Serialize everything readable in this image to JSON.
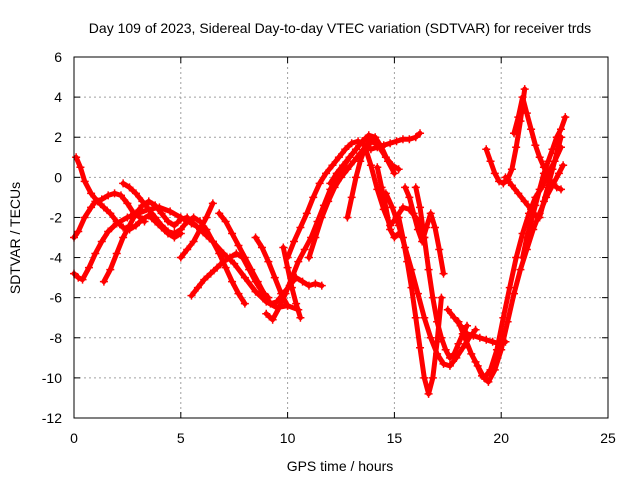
{
  "chart_data": {
    "type": "scatter",
    "title": "Day 109 of 2023, Sidereal Day-to-day VTEC variation (SDTVAR) for receiver trds",
    "xlabel": "GPS time / hours",
    "ylabel": "SDTVAR / TECUs",
    "xlim": [
      0,
      25
    ],
    "ylim": [
      -12,
      6
    ],
    "xticks": [
      "0",
      "5",
      "10",
      "15",
      "20",
      "25"
    ],
    "yticks": [
      "6",
      "4",
      "2",
      "0",
      "-2",
      "-4",
      "-6",
      "-8",
      "-10",
      "-12"
    ],
    "grid": true,
    "marker": "plus",
    "color": "#ff0000",
    "series": [
      {
        "x": [
          0.0,
          0.2,
          0.5,
          0.8,
          1.0,
          1.3,
          1.6,
          1.9,
          2.2,
          2.5,
          2.8,
          3.1,
          3.3
        ],
        "y": [
          -3.0,
          -2.7,
          -2.0,
          -1.5,
          -1.2,
          -1.1,
          -0.9,
          -0.8,
          -0.9,
          -1.3,
          -1.8,
          -2.0,
          -2.2
        ]
      },
      {
        "x": [
          0.0,
          0.2,
          0.4,
          0.7,
          1.0,
          1.3,
          1.6,
          2.0,
          2.5,
          3.0,
          3.5,
          4.0,
          4.5,
          5.0,
          5.5,
          6.0,
          6.5,
          7.0,
          7.5,
          8.0,
          8.5,
          9.0,
          9.5,
          10.0,
          10.5
        ],
        "y": [
          -4.8,
          -5.0,
          -5.1,
          -4.5,
          -3.8,
          -3.2,
          -2.7,
          -2.3,
          -2.0,
          -1.8,
          -1.6,
          -1.5,
          -1.7,
          -2.0,
          -2.3,
          -2.6,
          -3.2,
          -3.8,
          -4.3,
          -5.0,
          -5.7,
          -6.2,
          -6.5,
          -6.4,
          -6.6
        ]
      },
      {
        "x": [
          0.1,
          0.3,
          0.5,
          0.8,
          1.1,
          1.4,
          1.7,
          2.0,
          2.3,
          2.6,
          2.9,
          3.2,
          3.5,
          3.8,
          4.1,
          4.4,
          4.7,
          5.0
        ],
        "y": [
          1.0,
          0.5,
          -0.2,
          -0.8,
          -1.2,
          -1.5,
          -1.8,
          -2.2,
          -2.5,
          -2.6,
          -2.4,
          -2.1,
          -1.9,
          -2.2,
          -2.5,
          -2.8,
          -3.0,
          -2.8
        ]
      },
      {
        "x": [
          1.4,
          1.7,
          2.0,
          2.3,
          2.6,
          2.9,
          3.2,
          3.5,
          3.8,
          4.1,
          4.4,
          4.7,
          5.0,
          5.3,
          5.6,
          5.9,
          6.2,
          6.5
        ],
        "y": [
          -5.2,
          -4.6,
          -3.8,
          -3.0,
          -2.4,
          -1.8,
          -1.4,
          -1.2,
          -1.4,
          -1.8,
          -2.2,
          -2.4,
          -2.1,
          -2.0,
          -2.3,
          -2.6,
          -2.9,
          -3.2
        ]
      },
      {
        "x": [
          2.3,
          2.6,
          2.9,
          3.2,
          3.5,
          3.8,
          4.1,
          4.4,
          4.7,
          5.0,
          5.3,
          5.6,
          5.9,
          6.2,
          6.5,
          6.8,
          7.1,
          7.4,
          7.7,
          8.0
        ],
        "y": [
          -0.3,
          -0.5,
          -0.8,
          -1.2,
          -1.6,
          -2.0,
          -2.4,
          -2.7,
          -2.8,
          -2.6,
          -2.2,
          -2.0,
          -2.2,
          -2.6,
          -3.2,
          -3.8,
          -4.5,
          -5.2,
          -5.8,
          -6.3
        ]
      },
      {
        "x": [
          5.0,
          5.3,
          5.6,
          5.9,
          6.2,
          6.5
        ],
        "y": [
          -4.0,
          -3.6,
          -3.2,
          -2.6,
          -2.0,
          -1.3
        ]
      },
      {
        "x": [
          5.5,
          5.8,
          6.1,
          6.4,
          6.7,
          7.0,
          7.3,
          7.6,
          7.9,
          8.2,
          8.5,
          8.8,
          9.1
        ],
        "y": [
          -5.9,
          -5.5,
          -5.1,
          -4.8,
          -4.5,
          -4.2,
          -4.0,
          -3.8,
          -4.0,
          -4.6,
          -5.2,
          -5.7,
          -6.0
        ]
      },
      {
        "x": [
          6.8,
          7.1,
          7.4,
          7.7,
          8.0,
          8.3,
          8.6,
          8.9,
          9.2,
          9.5,
          9.8,
          10.1,
          10.4,
          10.7,
          11.0,
          11.3,
          11.6
        ],
        "y": [
          -1.8,
          -2.2,
          -2.8,
          -3.4,
          -4.0,
          -4.6,
          -5.2,
          -5.8,
          -6.3,
          -6.2,
          -5.8,
          -5.4,
          -5.0,
          -5.2,
          -5.4,
          -5.3,
          -5.4
        ]
      },
      {
        "x": [
          8.5,
          8.8,
          9.1,
          9.4,
          9.7,
          10.0
        ],
        "y": [
          -3.0,
          -3.5,
          -4.2,
          -5.0,
          -5.8,
          -6.4
        ]
      },
      {
        "x": [
          9.0,
          9.3,
          9.6,
          9.9,
          10.2,
          10.5,
          10.8,
          11.1,
          11.4,
          11.7,
          12.0,
          12.3,
          12.6,
          12.9,
          13.2,
          13.5,
          13.8,
          14.1,
          14.4
        ],
        "y": [
          -6.8,
          -7.1,
          -6.5,
          -5.8,
          -5.0,
          -4.2,
          -3.6,
          -3.0,
          -2.2,
          -1.4,
          -0.6,
          0.0,
          0.5,
          1.0,
          1.4,
          1.8,
          2.0,
          1.8,
          1.5
        ]
      },
      {
        "x": [
          9.8,
          10.0,
          10.2,
          10.4,
          10.6
        ],
        "y": [
          -3.5,
          -4.5,
          -5.5,
          -6.3,
          -7.0
        ]
      },
      {
        "x": [
          10.0,
          10.3,
          10.6,
          10.9,
          11.2,
          11.5,
          11.8,
          12.1,
          12.4,
          12.7,
          13.0,
          13.3,
          13.6,
          13.9,
          14.2,
          14.5,
          14.8,
          15.1,
          15.4,
          15.7,
          16.0,
          16.2
        ],
        "y": [
          -4.0,
          -3.2,
          -2.5,
          -1.8,
          -1.0,
          -0.3,
          0.2,
          0.6,
          1.0,
          1.4,
          1.7,
          1.8,
          1.6,
          1.4,
          1.5,
          1.6,
          1.7,
          1.8,
          1.9,
          1.9,
          2.0,
          2.2
        ]
      },
      {
        "x": [
          11.0,
          11.3,
          11.6,
          11.9,
          12.2,
          12.5,
          12.8,
          13.1,
          13.4,
          13.7,
          14.0,
          14.3,
          14.6,
          14.9,
          15.2
        ],
        "y": [
          -4.0,
          -3.0,
          -2.0,
          -1.2,
          -0.5,
          0.0,
          0.4,
          0.8,
          1.2,
          1.6,
          1.8,
          1.5,
          1.0,
          0.6,
          0.4
        ]
      },
      {
        "x": [
          12.0,
          12.3,
          12.6,
          12.9,
          13.2,
          13.5,
          13.8,
          14.1,
          14.4,
          14.7,
          15.0
        ],
        "y": [
          -0.3,
          0.2,
          0.6,
          1.0,
          1.4,
          1.8,
          2.1,
          2.0,
          1.5,
          0.8,
          0.2
        ]
      },
      {
        "x": [
          12.8,
          13.0,
          13.2,
          13.4,
          13.6,
          13.8
        ],
        "y": [
          -2.0,
          -1.0,
          0.0,
          0.8,
          1.4,
          1.8
        ]
      },
      {
        "x": [
          13.6,
          13.9,
          14.2,
          14.5,
          14.8,
          15.1,
          15.4,
          15.7,
          16.0,
          16.2,
          16.4
        ],
        "y": [
          1.6,
          0.6,
          -0.6,
          -1.6,
          -2.4,
          -2.0,
          -1.5,
          -1.6,
          -2.0,
          -2.4,
          -3.0
        ]
      },
      {
        "x": [
          14.2,
          14.4,
          14.6,
          14.8,
          15.0,
          15.2
        ],
        "y": [
          0.5,
          -0.5,
          -1.5,
          -2.6,
          -3.0,
          -2.8
        ]
      },
      {
        "x": [
          14.6,
          14.9,
          15.2,
          15.5,
          15.8,
          16.1,
          16.4,
          16.7,
          17.0,
          17.3,
          17.6,
          17.9,
          18.2,
          18.5,
          18.8
        ],
        "y": [
          -0.8,
          -1.5,
          -2.4,
          -3.5,
          -4.6,
          -5.8,
          -7.0,
          -8.0,
          -8.8,
          -9.3,
          -9.4,
          -9.0,
          -8.5,
          -8.0,
          -7.6
        ]
      },
      {
        "x": [
          15.5,
          15.7,
          15.9,
          16.1,
          16.3,
          16.5,
          16.7,
          16.9,
          17.1,
          17.3
        ],
        "y": [
          -0.5,
          -1.0,
          -1.8,
          -2.6,
          -3.2,
          -2.5,
          -1.8,
          -2.5,
          -3.6,
          -4.8
        ]
      },
      {
        "x": [
          15.2,
          15.4,
          15.6,
          15.8,
          16.0,
          16.2,
          16.4,
          16.6,
          16.8,
          17.0,
          17.2
        ],
        "y": [
          -2.0,
          -3.0,
          -4.2,
          -5.5,
          -7.0,
          -8.5,
          -10.0,
          -10.8,
          -10.0,
          -8.2,
          -6.0
        ]
      },
      {
        "x": [
          16.0,
          16.2,
          16.4,
          16.6,
          16.8,
          17.0,
          17.2,
          17.4,
          17.6,
          17.8,
          18.0,
          18.2,
          18.4
        ],
        "y": [
          -0.5,
          -1.5,
          -3.0,
          -4.6,
          -6.0,
          -7.2,
          -8.0,
          -8.6,
          -9.0,
          -8.8,
          -8.3,
          -7.8,
          -7.4
        ]
      },
      {
        "x": [
          17.5,
          17.8,
          18.1,
          18.4,
          18.7,
          19.0,
          19.3,
          19.6,
          19.9,
          20.2
        ],
        "y": [
          -6.6,
          -7.0,
          -7.4,
          -7.8,
          -7.9,
          -8.0,
          -8.1,
          -8.2,
          -8.3,
          -8.2
        ]
      },
      {
        "x": [
          18.0,
          18.3,
          18.6,
          18.9,
          19.2,
          19.5,
          19.8,
          20.1,
          20.4,
          20.7,
          21.0,
          21.3,
          21.6,
          21.9,
          22.2,
          22.5,
          22.8
        ],
        "y": [
          -7.2,
          -8.0,
          -8.8,
          -9.4,
          -10.0,
          -9.6,
          -8.6,
          -7.0,
          -5.5,
          -4.0,
          -2.8,
          -1.8,
          -1.0,
          -0.5,
          0.2,
          0.8,
          1.5
        ]
      },
      {
        "x": [
          18.8,
          19.1,
          19.4,
          19.7,
          20.0,
          20.3,
          20.6,
          20.9,
          21.2,
          21.5,
          21.8,
          22.1,
          22.4,
          22.7,
          22.9
        ],
        "y": [
          -9.2,
          -9.9,
          -10.2,
          -9.6,
          -8.6,
          -7.2,
          -5.8,
          -4.6,
          -3.6,
          -2.6,
          -1.8,
          -1.0,
          -0.4,
          0.2,
          0.6
        ]
      },
      {
        "x": [
          19.3,
          19.5,
          19.7,
          19.9,
          20.1,
          20.3,
          20.5,
          20.7,
          20.9,
          21.1
        ],
        "y": [
          1.4,
          0.8,
          0.2,
          -0.2,
          -0.3,
          -0.1,
          0.4,
          1.5,
          2.8,
          4.4
        ]
      },
      {
        "x": [
          20.6,
          20.8,
          21.0,
          21.2,
          21.4,
          21.6,
          21.8,
          22.0,
          22.2,
          22.4,
          22.6,
          22.8
        ],
        "y": [
          2.2,
          3.0,
          4.0,
          3.2,
          2.4,
          1.6,
          1.0,
          0.5,
          0.0,
          -0.3,
          -0.5,
          -0.6
        ]
      },
      {
        "x": [
          21.0,
          21.2,
          21.4,
          21.6,
          21.8,
          22.0,
          22.2,
          22.4,
          22.6,
          22.8,
          23.0
        ],
        "y": [
          -4.0,
          -3.0,
          -2.2,
          -1.4,
          -0.6,
          0.2,
          0.8,
          1.4,
          2.0,
          2.4,
          3.0
        ]
      },
      {
        "x": [
          21.8,
          22.0,
          22.2,
          22.4,
          22.6,
          22.8
        ],
        "y": [
          -2.0,
          -1.2,
          -0.4,
          0.4,
          1.2,
          2.0
        ]
      },
      {
        "x": [
          20.2,
          20.5,
          20.8,
          21.1,
          21.4,
          21.7
        ],
        "y": [
          0.0,
          -0.4,
          -0.8,
          -1.2,
          -1.6,
          -2.0
        ]
      }
    ]
  }
}
